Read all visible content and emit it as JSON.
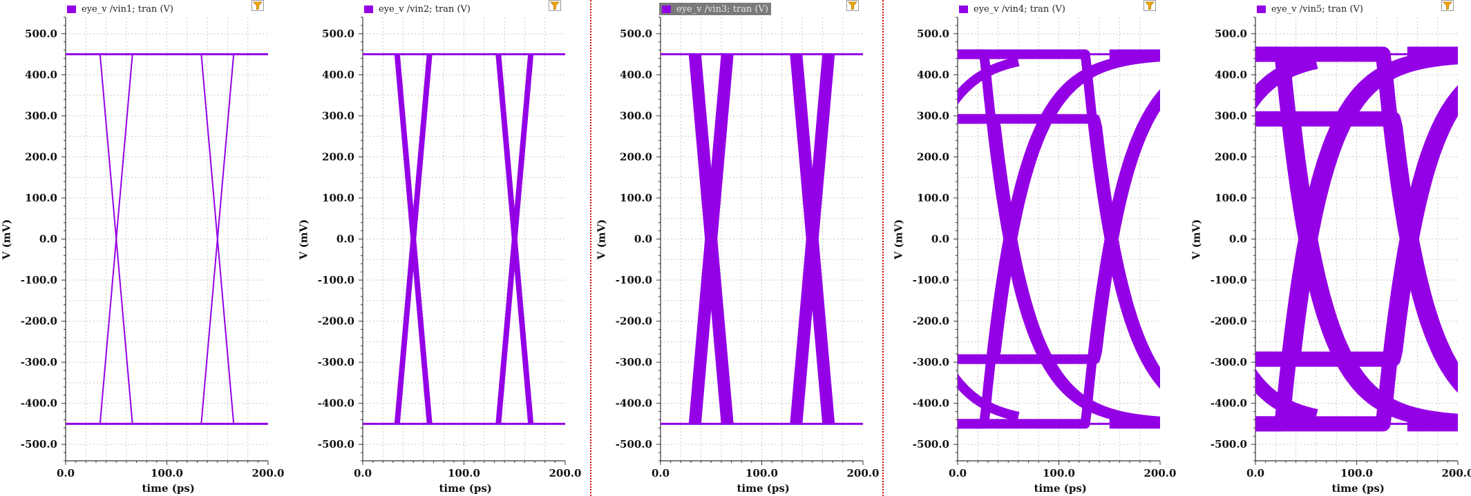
{
  "colors": {
    "trace": "#9400E6",
    "grid": "#c8c8c8",
    "axis": "#333333",
    "divider": "#d00000",
    "legend_selected_bg": "#7a7a7a",
    "filter_icon": "#f2a900"
  },
  "chart_data": [
    {
      "type": "line",
      "legend": "eye_v /vin1; tran (V)",
      "xlabel": "time (ps)",
      "ylabel": "V (mV)",
      "xlim": [
        0,
        200
      ],
      "ylim": [
        -540,
        540
      ],
      "xticks": [
        "0.0",
        "100.0",
        "200.0"
      ],
      "yticks": [
        "500.0",
        "400.0",
        "300.0",
        "200.0",
        "100.0",
        "0.0",
        "-100.0",
        "-200.0",
        "-300.0",
        "-400.0",
        "-500.0"
      ],
      "grid": true,
      "high_level": 450,
      "low_level": -450,
      "crossings": [
        50,
        150
      ],
      "crossing_half_width": 16,
      "band_thickness": 2,
      "style": "linear-eye"
    },
    {
      "type": "line",
      "legend": "eye_v /vin2; tran (V)",
      "xlabel": "time (ps)",
      "ylabel": "V (mV)",
      "xlim": [
        0,
        200
      ],
      "ylim": [
        -540,
        540
      ],
      "xticks": [
        "0.0",
        "100.0",
        "200.0"
      ],
      "yticks": [
        "500.0",
        "400.0",
        "300.0",
        "200.0",
        "100.0",
        "0.0",
        "-100.0",
        "-200.0",
        "-300.0",
        "-400.0",
        "-500.0"
      ],
      "grid": true,
      "high_level": 450,
      "low_level": -450,
      "crossings": [
        50,
        150
      ],
      "crossing_half_width": 16,
      "band_thickness": 8,
      "style": "linear-eye"
    },
    {
      "type": "line",
      "legend": "eye_v /vin3; tran (V)",
      "legend_selected": true,
      "xlabel": "time (ps)",
      "ylabel": "V (mV)",
      "xlim": [
        0,
        200
      ],
      "ylim": [
        -540,
        540
      ],
      "xticks": [
        "0.0",
        "100.0",
        "200.0"
      ],
      "yticks": [
        "500.0",
        "400.0",
        "300.0",
        "200.0",
        "100.0",
        "0.0",
        "-100.0",
        "-200.0",
        "-300.0",
        "-400.0",
        "-500.0"
      ],
      "grid": true,
      "high_level": 450,
      "low_level": -450,
      "crossings": [
        50,
        150
      ],
      "crossing_half_width": 16,
      "band_thickness": 18,
      "style": "linear-eye"
    },
    {
      "type": "line",
      "legend": "eye_v /vin4; tran (V)",
      "xlabel": "time (ps)",
      "ylabel": "V (mV)",
      "xlim": [
        0,
        200
      ],
      "ylim": [
        -540,
        540
      ],
      "xticks": [
        "0.0",
        "100.0",
        "200.0"
      ],
      "yticks": [
        "500.0",
        "400.0",
        "300.0",
        "200.0",
        "100.0",
        "0.0",
        "-100.0",
        "-200.0",
        "-300.0",
        "-400.0",
        "-500.0"
      ],
      "grid": true,
      "high_level": 450,
      "low_level": -450,
      "crossings": [
        50,
        150
      ],
      "band_thickness": 14,
      "tau": 34,
      "style": "rc-eye"
    },
    {
      "type": "line",
      "legend": "eye_v /vin5; tran (V)",
      "xlabel": "time (ps)",
      "ylabel": "V (mV)",
      "xlim": [
        0,
        200
      ],
      "ylim": [
        -540,
        540
      ],
      "xticks": [
        "0.0",
        "100.0",
        "200.0"
      ],
      "yticks": [
        "500.0",
        "400.0",
        "300.0",
        "200.0",
        "100.0",
        "0.0",
        "-100.0",
        "-200.0",
        "-300.0",
        "-400.0",
        "-500.0"
      ],
      "grid": true,
      "high_level": 450,
      "low_level": -450,
      "crossings": [
        50,
        150
      ],
      "band_thickness": 22,
      "tau": 34,
      "style": "rc-eye"
    }
  ]
}
